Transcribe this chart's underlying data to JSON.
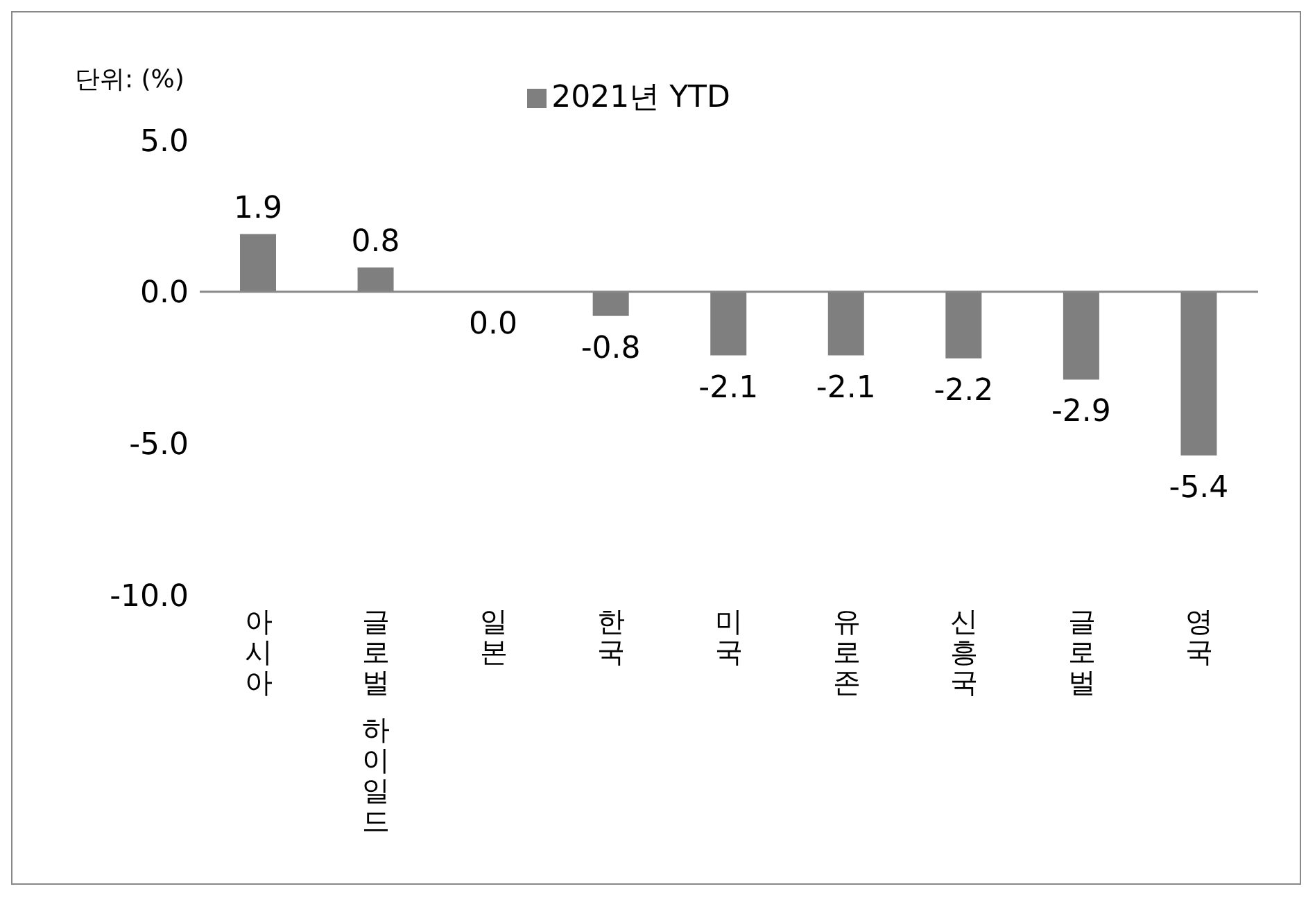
{
  "chart_data": {
    "type": "bar",
    "ylabel": "단위: (%)",
    "categories": [
      "아시아",
      "글로벌 하이일드",
      "일본",
      "한국",
      "미국",
      "유로존",
      "신흥국",
      "글로벌",
      "영국"
    ],
    "series": [
      {
        "name": "2021년 YTD",
        "color": "#7f7f7f",
        "values": [
          1.9,
          0.8,
          0.0,
          -0.8,
          -2.1,
          -2.1,
          -2.2,
          -2.9,
          -5.4
        ],
        "value_labels": [
          "1.9",
          "0.8",
          "0.0",
          "-0.8",
          "-2.1",
          "-2.1",
          "-2.2",
          "-2.9",
          "-5.4"
        ]
      }
    ],
    "ylim": [
      -10,
      5
    ],
    "yticks": [
      {
        "value": -10,
        "label": "-10.0"
      },
      {
        "value": -5,
        "label": "-5.0"
      },
      {
        "value": 0,
        "label": "0.0"
      },
      {
        "value": 5,
        "label": "5.0"
      }
    ],
    "ref_lines": [
      {
        "axis": "y",
        "value": 0,
        "color": "#888888"
      }
    ],
    "legend": "top",
    "grid": false
  }
}
